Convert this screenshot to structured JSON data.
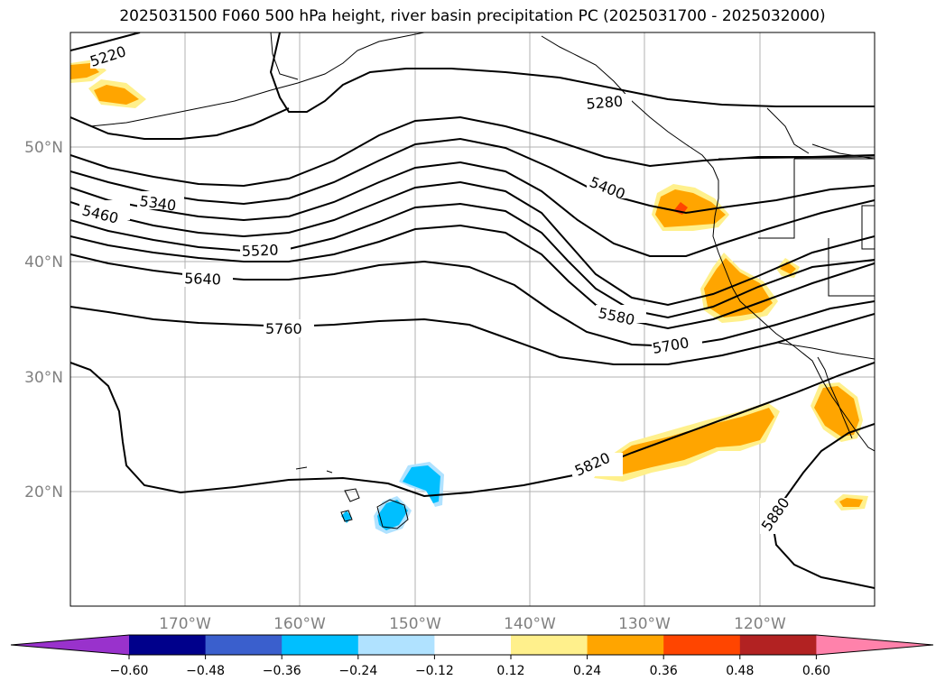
{
  "title": "2025031500 F060 500 hPa height, river basin precipitation PC (2025031700 - 2025032000)",
  "map": {
    "projection": "PlateCarree",
    "lon_range": [
      -180,
      -110
    ],
    "lat_range": [
      10,
      60
    ],
    "gridlines": true,
    "lat_labels": [
      "50°N",
      "40°N",
      "30°N",
      "20°N"
    ],
    "lon_labels": [
      "170°W",
      "160°W",
      "150°W",
      "140°W",
      "130°W",
      "120°W"
    ],
    "contour_labels": [
      "5220",
      "5280",
      "5340",
      "5400",
      "5460",
      "5520",
      "5580",
      "5640",
      "5700",
      "5760",
      "5820",
      "5880"
    ],
    "anomaly_regions": [
      {
        "name": "positive",
        "region": "Pacific Northwest coast",
        "level": "0.24-0.36"
      },
      {
        "name": "positive",
        "region": "Northern California",
        "level": "0.24-0.36"
      },
      {
        "name": "positive",
        "region": "Baja California / Gulf of California",
        "level": "0.24-0.36"
      },
      {
        "name": "positive",
        "region": "Subtropical NE Pacific band",
        "level": "0.24-0.36"
      },
      {
        "name": "negative",
        "region": "Hawaii",
        "level": "-0.24 to -0.36"
      }
    ]
  },
  "colorbar": {
    "ticks": [
      "−0.60",
      "−0.48",
      "−0.36",
      "−0.24",
      "−0.12",
      "0.12",
      "0.24",
      "0.36",
      "0.48",
      "0.60"
    ],
    "colors": [
      "#9932cc",
      "#00008b",
      "#3a5fcd",
      "#00bfff",
      "#b0e2ff",
      "#ffffff",
      "#fff08c",
      "#ffa500",
      "#ff4500",
      "#b22222",
      "#ff82ab"
    ]
  }
}
